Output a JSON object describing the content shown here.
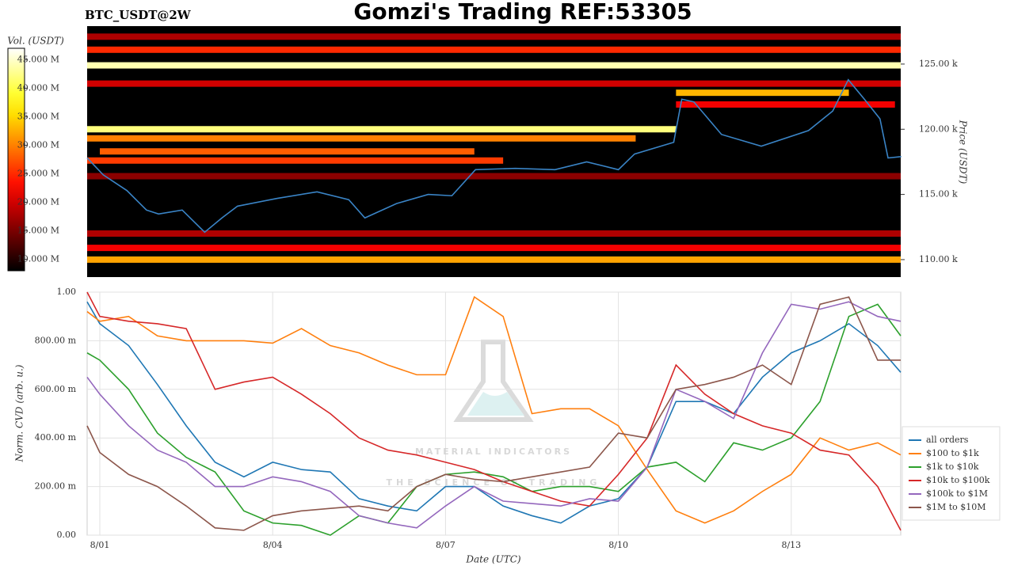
{
  "chart_data": [
    {
      "type": "heatmap",
      "title": "Gomzi's Trading REF:53305",
      "subtitle": "BTC_USDT@2W",
      "y_label": "Price (USDT)",
      "xlim": [
        0.78,
        14.9
      ],
      "ylim": [
        108660,
        127910
      ],
      "yticks": [
        {
          "value": 110000,
          "label": "110.00 k"
        },
        {
          "value": 115000,
          "label": "115.00 k"
        },
        {
          "value": 120000,
          "label": "120.00 k"
        },
        {
          "value": 125000,
          "label": "125.00 k"
        }
      ],
      "colorbar": {
        "label": "Vol. (USDT)",
        "lim": [
          8000000,
          47000000
        ],
        "ticks": [
          {
            "value": 10000000,
            "label": "10.000 M"
          },
          {
            "value": 15000000,
            "label": "15.000 M"
          },
          {
            "value": 20000000,
            "label": "20.000 M"
          },
          {
            "value": 25000000,
            "label": "25.000 M"
          },
          {
            "value": 30000000,
            "label": "30.000 M"
          },
          {
            "value": 35000000,
            "label": "35.000 M"
          },
          {
            "value": 40000000,
            "label": "40.000 M"
          },
          {
            "value": 45000000,
            "label": "45.000 M"
          }
        ]
      },
      "bands": [
        {
          "price": 127100,
          "x0": 0.78,
          "x1": 14.9,
          "volume": 18000000
        },
        {
          "price": 126100,
          "x0": 0.78,
          "x1": 14.9,
          "volume": 25000000
        },
        {
          "price": 124900,
          "x0": 0.78,
          "x1": 14.9,
          "volume": 44000000
        },
        {
          "price": 123500,
          "x0": 0.78,
          "x1": 14.9,
          "volume": 20000000
        },
        {
          "price": 122800,
          "x0": 11.0,
          "x1": 14.0,
          "volume": 33000000
        },
        {
          "price": 121900,
          "x0": 11.0,
          "x1": 14.8,
          "volume": 22000000
        },
        {
          "price": 120000,
          "x0": 0.78,
          "x1": 11.0,
          "volume": 42000000
        },
        {
          "price": 119300,
          "x0": 0.78,
          "x1": 10.3,
          "volume": 30000000
        },
        {
          "price": 118300,
          "x0": 1.0,
          "x1": 7.5,
          "volume": 28000000
        },
        {
          "price": 117600,
          "x0": 0.78,
          "x1": 8.0,
          "volume": 26000000
        },
        {
          "price": 116400,
          "x0": 0.78,
          "x1": 14.9,
          "volume": 16000000
        },
        {
          "price": 112000,
          "x0": 0.78,
          "x1": 14.9,
          "volume": 18000000
        },
        {
          "price": 110900,
          "x0": 0.78,
          "x1": 14.9,
          "volume": 22000000
        },
        {
          "price": 110000,
          "x0": 0.78,
          "x1": 14.9,
          "volume": 32000000
        }
      ],
      "price_line": {
        "color": "#3a84c6",
        "x": [
          0.78,
          1.06,
          1.47,
          1.81,
          2.02,
          2.43,
          2.82,
          3.12,
          3.39,
          4.08,
          4.77,
          5.32,
          5.6,
          6.15,
          6.7,
          7.11,
          7.52,
          8.21,
          8.9,
          9.45,
          10.0,
          10.28,
          10.96,
          11.1,
          11.31,
          11.79,
          12.48,
          13.3,
          13.72,
          13.99,
          14.27,
          14.54,
          14.68,
          14.91
        ],
        "values": [
          117800,
          116500,
          115300,
          113800,
          113500,
          113800,
          112100,
          113200,
          114100,
          114700,
          115200,
          114600,
          113200,
          114300,
          115000,
          114900,
          116900,
          117000,
          116900,
          117500,
          116900,
          118100,
          119000,
          122300,
          122100,
          119600,
          118700,
          119900,
          121400,
          123800,
          122300,
          120800,
          117800,
          117900
        ]
      }
    },
    {
      "type": "line",
      "x_label": "Date (UTC)",
      "y_label": "Norm. CVD (arb. u.)",
      "xlim": [
        0.78,
        14.9
      ],
      "ylim": [
        0,
        1
      ],
      "grid": true,
      "legend": "lower right",
      "xticks": [
        {
          "value": 1,
          "label": "8/01"
        },
        {
          "value": 4,
          "label": "8/04"
        },
        {
          "value": 7,
          "label": "8/07"
        },
        {
          "value": 10,
          "label": "8/10"
        },
        {
          "value": 13,
          "label": "8/13"
        }
      ],
      "yticks": [
        {
          "value": 0,
          "label": "0.00"
        },
        {
          "value": 0.2,
          "label": "200.00 m"
        },
        {
          "value": 0.4,
          "label": "400.00 m"
        },
        {
          "value": 0.6,
          "label": "600.00 m"
        },
        {
          "value": 0.8,
          "label": "800.00 m"
        },
        {
          "value": 1,
          "label": "1.00"
        }
      ],
      "watermark": [
        "MATERIAL INDICATORS",
        "THE SCIENCE OF TRADING"
      ],
      "x": [
        0.78,
        1,
        1.5,
        2,
        2.5,
        3,
        3.5,
        4,
        4.5,
        5,
        5.5,
        6,
        6.5,
        7,
        7.5,
        8,
        8.5,
        9,
        9.5,
        10,
        10.5,
        11,
        11.5,
        12,
        12.5,
        13,
        13.5,
        14,
        14.5,
        14.9
      ],
      "series": [
        {
          "name": "all orders",
          "color": "#1f77b4",
          "values": [
            0.96,
            0.87,
            0.78,
            0.62,
            0.45,
            0.3,
            0.24,
            0.3,
            0.27,
            0.26,
            0.15,
            0.12,
            0.1,
            0.2,
            0.2,
            0.12,
            0.08,
            0.05,
            0.12,
            0.15,
            0.28,
            0.55,
            0.55,
            0.5,
            0.65,
            0.75,
            0.8,
            0.87,
            0.78,
            0.67
          ]
        },
        {
          "name": "$100 to $1k",
          "color": "#ff7f0e",
          "values": [
            0.92,
            0.88,
            0.9,
            0.82,
            0.8,
            0.8,
            0.8,
            0.79,
            0.85,
            0.78,
            0.75,
            0.7,
            0.66,
            0.66,
            0.98,
            0.9,
            0.5,
            0.52,
            0.52,
            0.45,
            0.27,
            0.1,
            0.05,
            0.1,
            0.18,
            0.25,
            0.4,
            0.35,
            0.38,
            0.33
          ]
        },
        {
          "name": "$1k to $10k",
          "color": "#2ca02c",
          "values": [
            0.75,
            0.72,
            0.6,
            0.42,
            0.32,
            0.26,
            0.1,
            0.05,
            0.04,
            0,
            0.08,
            0.05,
            0.2,
            0.25,
            0.26,
            0.24,
            0.18,
            0.2,
            0.2,
            0.18,
            0.28,
            0.3,
            0.22,
            0.38,
            0.35,
            0.4,
            0.55,
            0.9,
            0.95,
            0.82
          ]
        },
        {
          "name": "$10k to $100k",
          "color": "#d62728",
          "values": [
            1,
            0.9,
            0.88,
            0.87,
            0.85,
            0.6,
            0.63,
            0.65,
            0.58,
            0.5,
            0.4,
            0.35,
            0.33,
            0.3,
            0.27,
            0.22,
            0.18,
            0.14,
            0.12,
            0.25,
            0.4,
            0.7,
            0.58,
            0.5,
            0.45,
            0.42,
            0.35,
            0.33,
            0.2,
            0.02
          ]
        },
        {
          "name": "$100k to $1M",
          "color": "#9467bd",
          "values": [
            0.65,
            0.58,
            0.45,
            0.35,
            0.3,
            0.2,
            0.2,
            0.24,
            0.22,
            0.18,
            0.08,
            0.05,
            0.03,
            0.12,
            0.2,
            0.14,
            0.13,
            0.12,
            0.15,
            0.14,
            0.28,
            0.6,
            0.55,
            0.48,
            0.75,
            0.95,
            0.93,
            0.96,
            0.9,
            0.88
          ]
        },
        {
          "name": "$1M to $10M",
          "color": "#8c564b",
          "values": [
            0.45,
            0.34,
            0.25,
            0.2,
            0.12,
            0.03,
            0.02,
            0.08,
            0.1,
            0.11,
            0.12,
            0.1,
            0.2,
            0.25,
            0.23,
            0.22,
            0.24,
            0.26,
            0.28,
            0.42,
            0.4,
            0.6,
            0.62,
            0.65,
            0.7,
            0.62,
            0.95,
            0.98,
            0.72,
            0.72
          ]
        }
      ]
    }
  ]
}
